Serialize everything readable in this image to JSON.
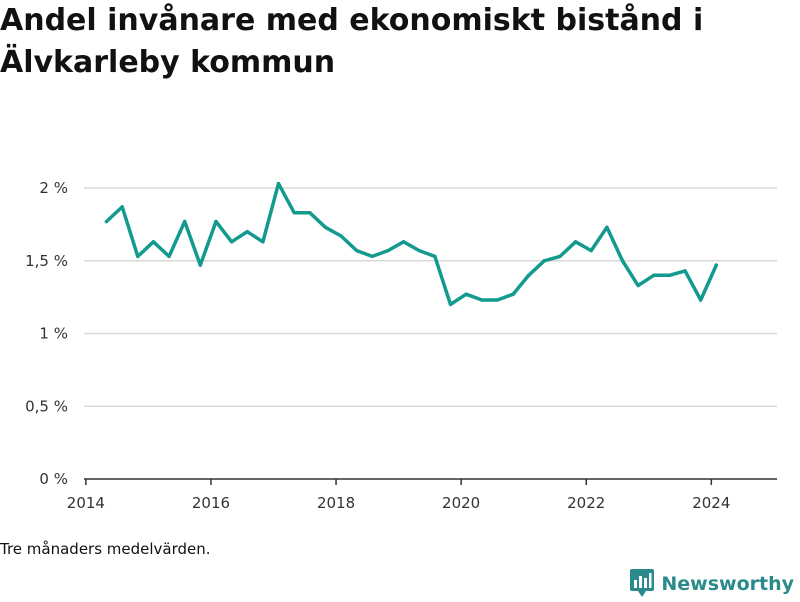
{
  "title": "Andel invånare med ekonomiskt bistånd i Älvkarleby kommun",
  "note": "Tre månaders medelvärden.",
  "brand": {
    "name": "Newsworthy",
    "icon": "bar-chart-bubble-icon",
    "color": "#2b8a8b"
  },
  "colors": {
    "line": "#139a8f",
    "grid": "#d9d9d9",
    "axis": "#333333"
  },
  "chart_data": {
    "type": "line",
    "title": "Andel invånare med ekonomiskt bistånd i Älvkarleby kommun",
    "xlabel": "",
    "ylabel": "",
    "xlim": [
      2013.97,
      2025.05
    ],
    "ylim": [
      0,
      2
    ],
    "xticks": [
      {
        "value": 2014,
        "label": "2014"
      },
      {
        "value": 2016,
        "label": "2016"
      },
      {
        "value": 2018,
        "label": "2018"
      },
      {
        "value": 2020,
        "label": "2020"
      },
      {
        "value": 2022,
        "label": "2022"
      },
      {
        "value": 2024,
        "label": "2024"
      }
    ],
    "yticks": [
      {
        "value": 0,
        "label": "0 %"
      },
      {
        "value": 0.5,
        "label": "0,5 %"
      },
      {
        "value": 1,
        "label": "1 %"
      },
      {
        "value": 1.5,
        "label": "1,5 %"
      },
      {
        "value": 2,
        "label": "2 %"
      }
    ],
    "grid": true,
    "series": [
      {
        "x": [
          2014.33,
          2014.58,
          2014.83,
          2015.08,
          2015.33,
          2015.58,
          2015.83,
          2016.08,
          2016.33,
          2016.58,
          2016.83,
          2017.08,
          2017.33,
          2017.58,
          2017.83,
          2018.08,
          2018.33,
          2018.58,
          2018.83,
          2019.08,
          2019.33,
          2019.58,
          2019.83,
          2020.08,
          2020.33,
          2020.58,
          2020.83,
          2021.08,
          2021.33,
          2021.58,
          2021.83,
          2022.08,
          2022.33,
          2022.58,
          2022.83,
          2023.08,
          2023.33,
          2023.58,
          2023.83,
          2024.08
        ],
        "values": [
          1.77,
          1.87,
          1.53,
          1.63,
          1.53,
          1.77,
          1.47,
          1.77,
          1.63,
          1.7,
          1.63,
          2.03,
          1.83,
          1.83,
          1.73,
          1.67,
          1.57,
          1.53,
          1.57,
          1.63,
          1.57,
          1.53,
          1.2,
          1.27,
          1.23,
          1.23,
          1.27,
          1.4,
          1.5,
          1.53,
          1.63,
          1.57,
          1.73,
          1.5,
          1.33,
          1.4,
          1.4,
          1.43,
          1.23,
          1.47
        ]
      }
    ]
  }
}
